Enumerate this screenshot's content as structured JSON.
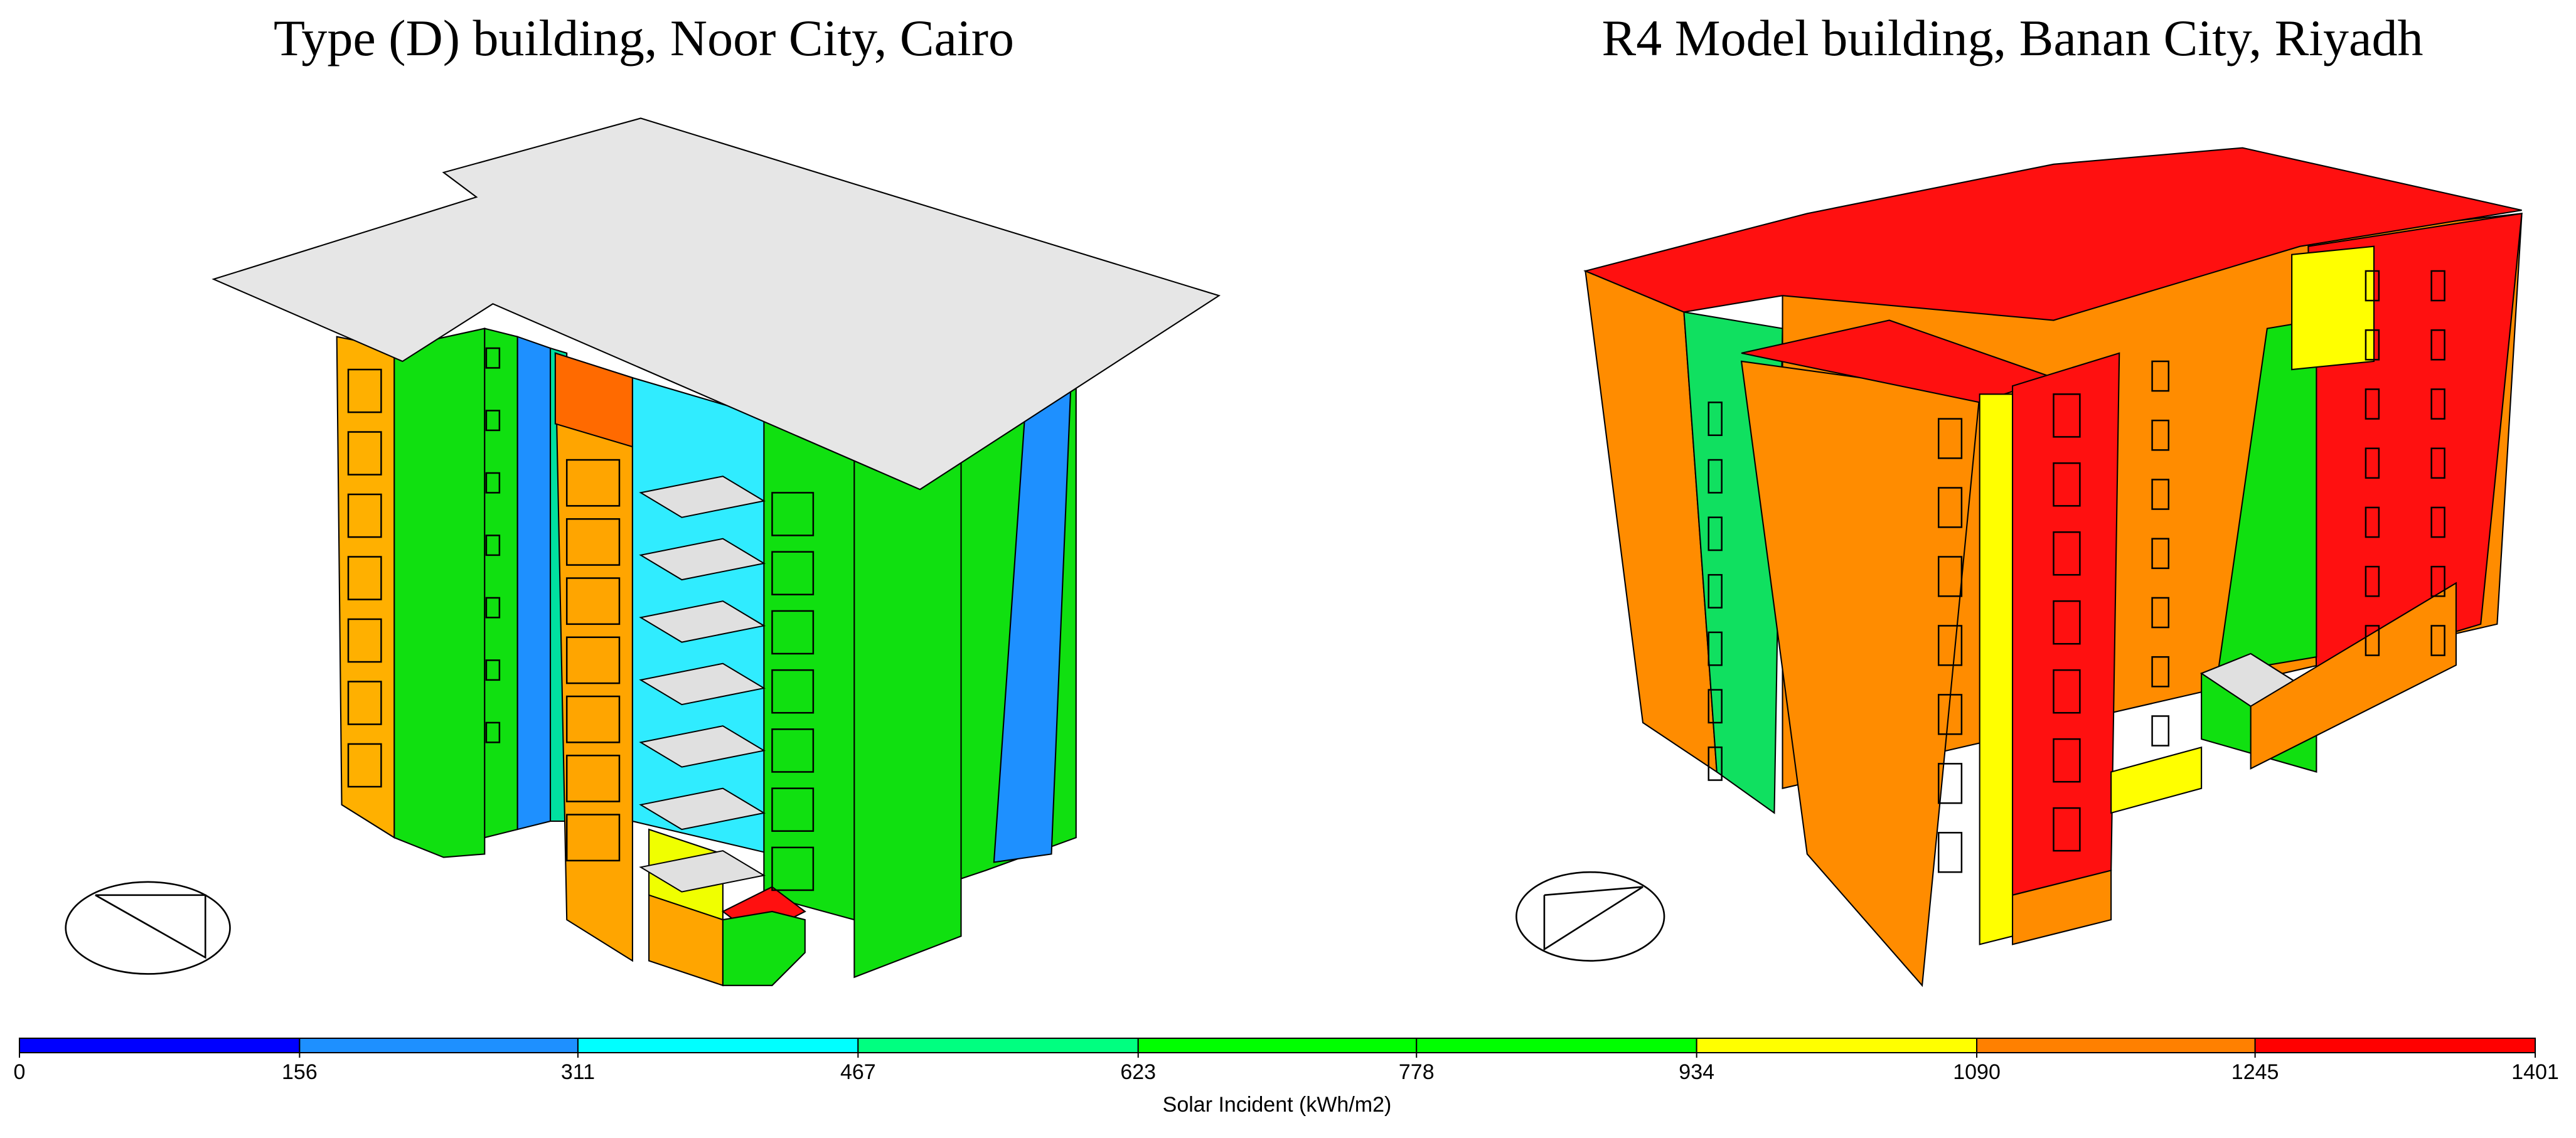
{
  "panels": [
    {
      "title": "Type (D) building, Noor City, Cairo"
    },
    {
      "title": "R4 Model building, Banan City, Riyadh"
    }
  ],
  "colorbar": {
    "label": "Solar Incident (kWh/m2)",
    "ticks": [
      0,
      156,
      311,
      467,
      623,
      778,
      934,
      1090,
      1245,
      1401
    ],
    "colors": [
      "#0000ff",
      "#1e90ff",
      "#00ffff",
      "#00ff80",
      "#00ff00",
      "#00ff00",
      "#ffff00",
      "#ff8000",
      "#ff0000"
    ]
  }
}
